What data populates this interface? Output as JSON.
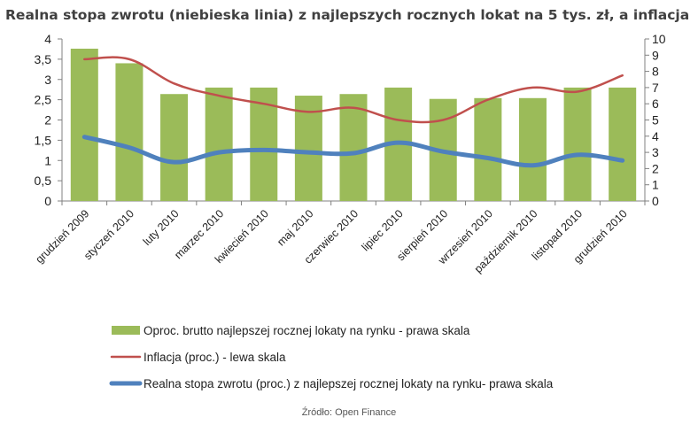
{
  "chart_data": {
    "type": "bar+line",
    "title": "Realna stopa zwrotu (niebieska linia) z najlepszych rocznych lokat na 5 tys. zł, a inflacja",
    "source": "Źródło: Open Finance",
    "categories": [
      "grudzień 2009",
      "styczeń 2010",
      "luty 2010",
      "marzec 2010",
      "kwiecień 2010",
      "maj 2010",
      "czerwiec 2010",
      "lipiec 2010",
      "sierpień 2010",
      "wrzesień 2010",
      "październik 2010",
      "listopad 2010",
      "grudzień 2010"
    ],
    "left_axis": {
      "ylim": [
        0,
        4
      ],
      "ticks": [
        "0",
        "0,5",
        "1",
        "1,5",
        "2",
        "2,5",
        "3",
        "3,5",
        "4"
      ],
      "tick_values": [
        0,
        0.5,
        1,
        1.5,
        2,
        2.5,
        3,
        3.5,
        4
      ]
    },
    "right_axis": {
      "ylim": [
        0,
        10
      ],
      "ticks": [
        "0",
        "1",
        "2",
        "3",
        "4",
        "5",
        "6",
        "7",
        "8",
        "9",
        "10"
      ],
      "tick_values": [
        0,
        1,
        2,
        3,
        4,
        5,
        6,
        7,
        8,
        9,
        10
      ]
    },
    "series": [
      {
        "name": "Oproc. brutto najlepszej rocznej lokaty na rynku - prawa skala",
        "kind": "bar",
        "axis": "right",
        "color": "#9BBB59",
        "values": [
          9.4,
          8.5,
          6.6,
          7.0,
          7.0,
          6.5,
          6.6,
          7.0,
          6.3,
          6.35,
          6.35,
          7.0,
          7.0
        ]
      },
      {
        "name": "Inflacja (proc.) - lewa skala",
        "kind": "line",
        "axis": "left",
        "color": "#C0504D",
        "values": [
          3.5,
          3.5,
          2.9,
          2.6,
          2.4,
          2.2,
          2.3,
          2.0,
          2.0,
          2.5,
          2.8,
          2.7,
          3.1
        ]
      },
      {
        "name": "Realna stopa zwrotu (proc.) z najlepszej rocznej lokaty na rynku- prawa skala",
        "kind": "line",
        "axis": "right",
        "color": "#4F81BD",
        "values": [
          3.95,
          3.3,
          2.4,
          3.0,
          3.15,
          3.0,
          2.95,
          3.6,
          3.05,
          2.65,
          2.2,
          2.85,
          2.5
        ]
      }
    ],
    "legend": "bottom",
    "grid": false
  }
}
